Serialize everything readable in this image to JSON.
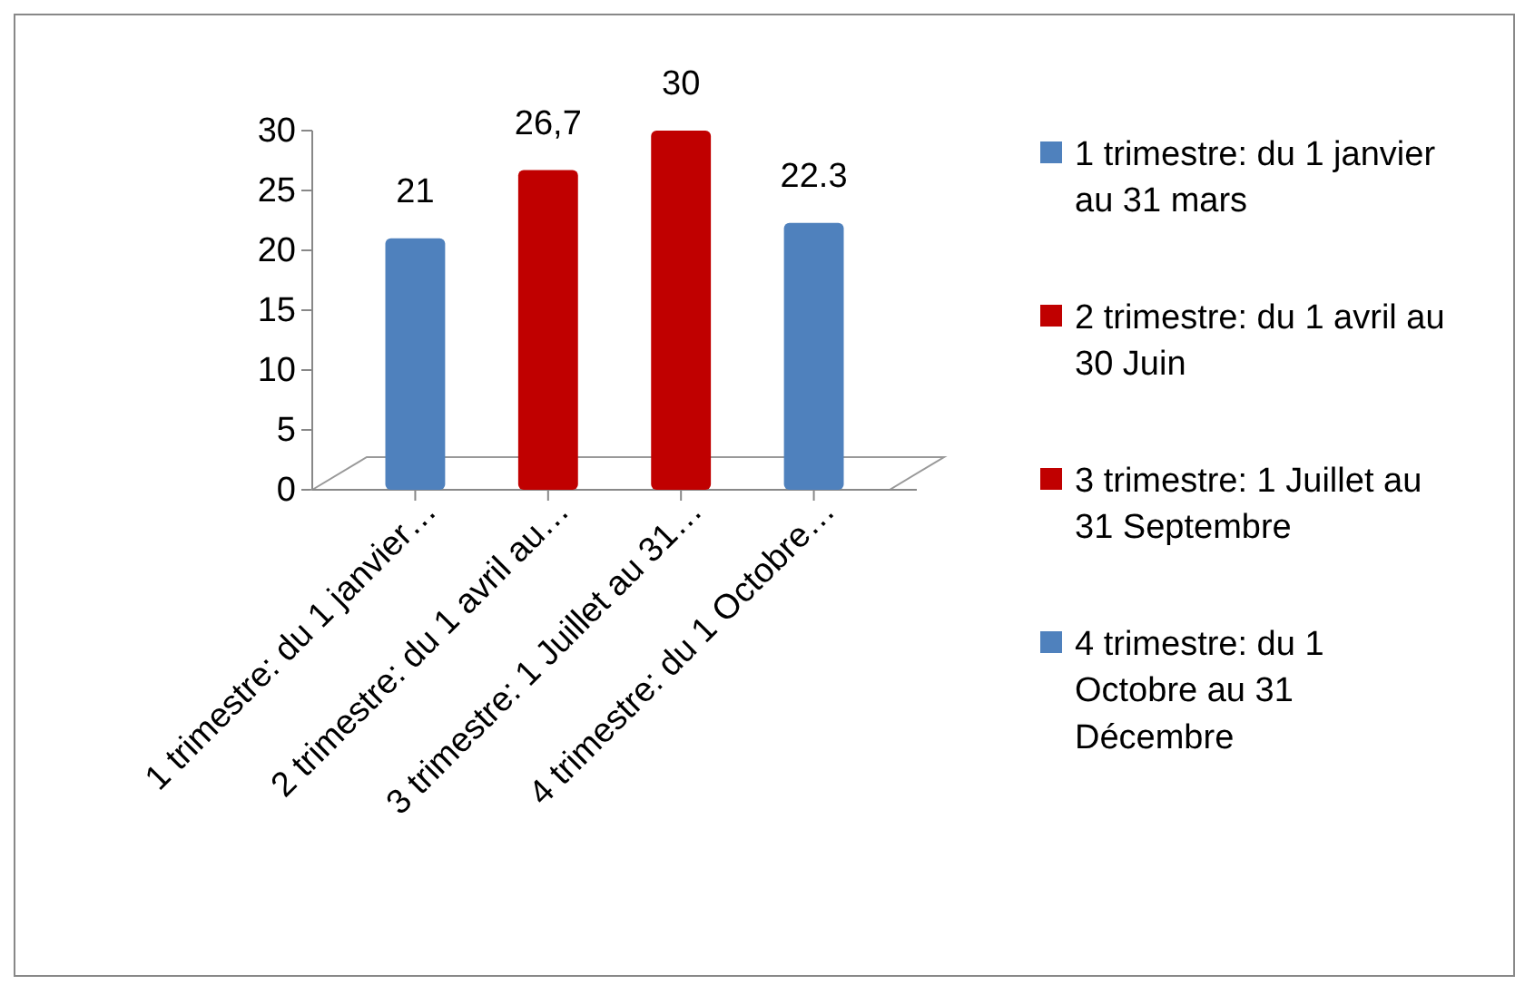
{
  "chart_data": {
    "type": "bar",
    "categories": [
      "1 trimestre: du 1 janvier…",
      "2 trimestre: du 1 avril au…",
      "3 trimestre: 1 Juillet au 31…",
      "4 trimestre: du 1 Octobre…"
    ],
    "series": [
      {
        "name": "1 trimestre: du 1 janvier au 31 mars",
        "color": "#4f81bd",
        "values": [
          21,
          null,
          null,
          null
        ],
        "value_labels": [
          "21",
          null,
          null,
          null
        ]
      },
      {
        "name": "2 trimestre: du 1 avril au 30 Juin",
        "color": "#c00000",
        "values": [
          null,
          26.7,
          null,
          null
        ],
        "value_labels": [
          null,
          "26,7",
          null,
          null
        ]
      },
      {
        "name": "3 trimestre: 1 Juillet au 31 Septembre",
        "color": "#c00000",
        "values": [
          null,
          null,
          30,
          null
        ],
        "value_labels": [
          null,
          null,
          "30",
          null
        ]
      },
      {
        "name": "4 trimestre: du 1 Octobre au 31 Décembre",
        "color": "#4f81bd",
        "values": [
          null,
          null,
          null,
          22.3
        ],
        "value_labels": [
          null,
          null,
          null,
          "22.3"
        ]
      }
    ],
    "ylim": [
      0,
      30
    ],
    "yticks": [
      0,
      5,
      10,
      15,
      20,
      25,
      30
    ],
    "legend": "right"
  }
}
